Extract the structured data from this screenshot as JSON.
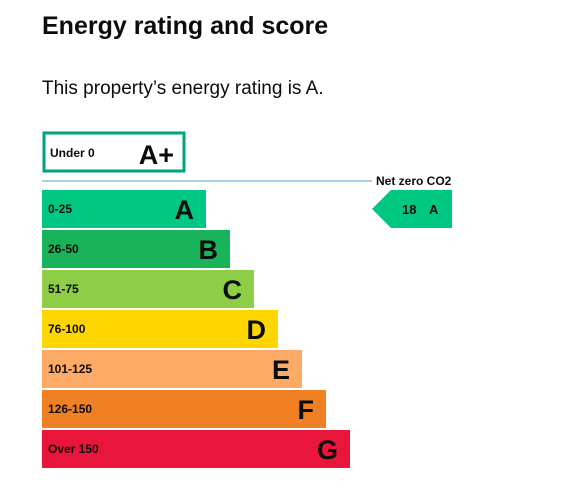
{
  "heading": "Energy rating and score",
  "intro": "This property’s energy rating is A.",
  "chart_data": {
    "type": "bar",
    "title": "",
    "top_band": {
      "range": "Under 0",
      "letter": "A+",
      "color": "#00a37a"
    },
    "bands": [
      {
        "range": "0-25",
        "letter": "A",
        "color": "#00c781"
      },
      {
        "range": "26-50",
        "letter": "B",
        "color": "#19b459"
      },
      {
        "range": "51-75",
        "letter": "C",
        "color": "#8dce46"
      },
      {
        "range": "76-100",
        "letter": "D",
        "color": "#ffd500"
      },
      {
        "range": "101-125",
        "letter": "E",
        "color": "#fcaa65"
      },
      {
        "range": "126-150",
        "letter": "F",
        "color": "#ef8023"
      },
      {
        "range": "Over 150",
        "letter": "G",
        "color": "#e9153b"
      }
    ],
    "net_zero_label": "Net zero CO2",
    "net_zero_line_color": "#a6d3e6",
    "current": {
      "score": 18,
      "letter": "A",
      "band_index": 0,
      "color": "#00c781"
    }
  }
}
